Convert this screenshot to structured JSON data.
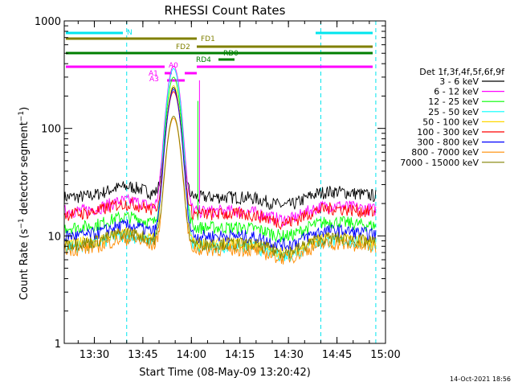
{
  "chart_data": {
    "type": "line",
    "title": "RHESSI Count Rates",
    "xlabel": "Start Time (08-May-09 13:20:42)",
    "ylabel": "Count Rate (s⁻¹ detector segment⁻¹)",
    "yscale": "log",
    "ylim": [
      1,
      1000
    ],
    "xlim": [
      "13:20:42",
      "15:00:00"
    ],
    "x_ticks": [
      "13:30",
      "13:45",
      "14:00",
      "14:15",
      "14:30",
      "14:45",
      "15:00"
    ],
    "y_ticks": [
      "1",
      "10",
      "100",
      "1000"
    ],
    "grid": false,
    "legend_title": "Det 1f,3f,4f,5f,6f,9f",
    "legend_position": "right",
    "series": [
      {
        "name": "3 - 6 keV",
        "color": "#000000",
        "base": 23,
        "peak": 240
      },
      {
        "name": "6 - 12 keV",
        "color": "#ff00ff",
        "base": 17,
        "peak": 380
      },
      {
        "name": "12 - 25 keV",
        "color": "#00ff00",
        "base": 12,
        "peak": 300
      },
      {
        "name": "25 - 50 keV",
        "color": "#00ffff",
        "base": 8,
        "peak": 360
      },
      {
        "name": "50 - 100 keV",
        "color": "#ffd700",
        "base": 8.5,
        "peak": 250
      },
      {
        "name": "100 - 300 keV",
        "color": "#ff0000",
        "base": 16,
        "peak": 220
      },
      {
        "name": "300 - 800 keV",
        "color": "#0000ff",
        "base": 10,
        "peak": 230
      },
      {
        "name": "800 - 7000 keV",
        "color": "#ff8c00",
        "base": 7.5,
        "peak": 125
      },
      {
        "name": "7000 - 15000 keV",
        "color": "#808000",
        "base": 8.5,
        "peak": 130
      }
    ],
    "attenuator_states": [
      "A0",
      "A1",
      "A3"
    ],
    "flags": [
      "N",
      "FD1",
      "FD2",
      "RD0",
      "RD4"
    ],
    "vertical_lines": [
      "13:20:42",
      "13:40",
      "14:40",
      "14:57"
    ]
  },
  "footer_timestamp": "14-Oct-2021 18:56"
}
